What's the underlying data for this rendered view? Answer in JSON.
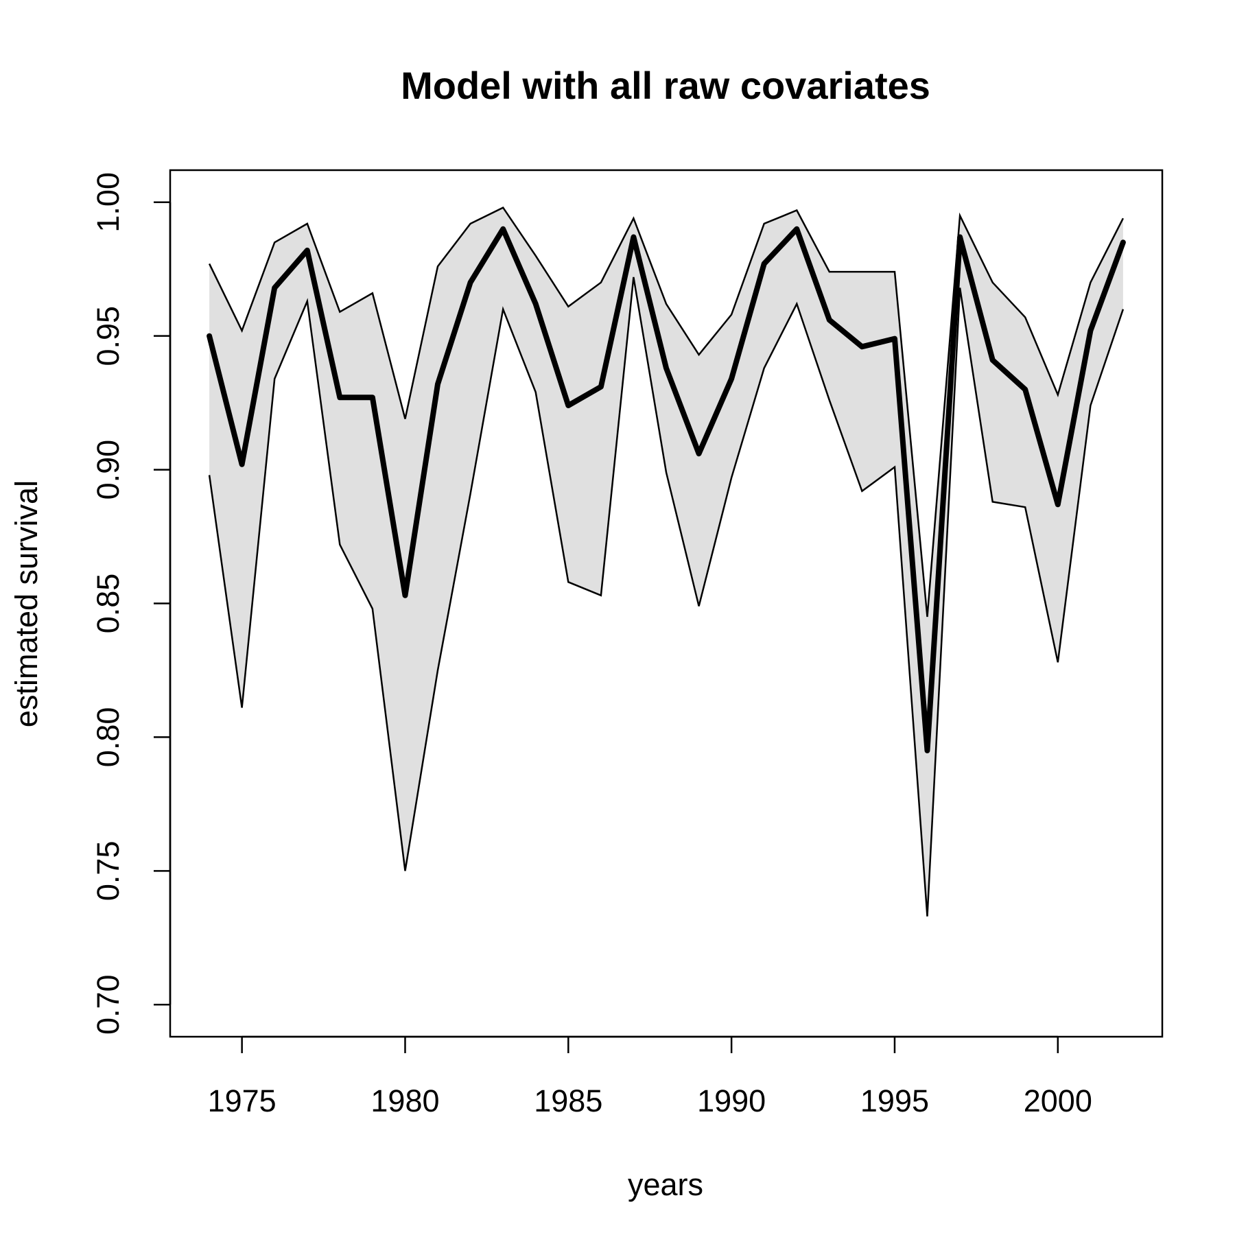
{
  "chart_data": {
    "type": "line",
    "title": "Model with all raw covariates",
    "xlabel": "years",
    "ylabel": "estimated survival",
    "xlim": [
      1972.8,
      2003.2
    ],
    "ylim": [
      0.688,
      1.012
    ],
    "x_ticks": [
      1975,
      1980,
      1985,
      1990,
      1995,
      2000
    ],
    "y_ticks": [
      0.7,
      0.75,
      0.8,
      0.85,
      0.9,
      0.95,
      1.0
    ],
    "x_tick_labels": [
      "1975",
      "1980",
      "1985",
      "1990",
      "1995",
      "2000"
    ],
    "y_tick_labels": [
      "0.70",
      "0.75",
      "0.80",
      "0.85",
      "0.90",
      "0.95",
      "1.00"
    ],
    "grid": false,
    "colors": {
      "band_fill": "#e0e0e0",
      "line": "#000000"
    },
    "x": [
      1974,
      1975,
      1976,
      1977,
      1978,
      1979,
      1980,
      1981,
      1982,
      1983,
      1984,
      1985,
      1986,
      1987,
      1988,
      1989,
      1990,
      1991,
      1992,
      1993,
      1994,
      1995,
      1996,
      1997,
      1998,
      1999,
      2000,
      2001,
      2002
    ],
    "series": [
      {
        "role": "estimate",
        "values": [
          0.95,
          0.902,
          0.968,
          0.982,
          0.927,
          0.927,
          0.853,
          0.932,
          0.97,
          0.99,
          0.962,
          0.924,
          0.931,
          0.987,
          0.938,
          0.906,
          0.934,
          0.977,
          0.99,
          0.956,
          0.946,
          0.949,
          0.795,
          0.987,
          0.941,
          0.93,
          0.887,
          0.952,
          0.985
        ]
      },
      {
        "role": "upper",
        "values": [
          0.977,
          0.952,
          0.985,
          0.992,
          0.959,
          0.966,
          0.919,
          0.976,
          0.992,
          0.998,
          0.98,
          0.961,
          0.97,
          0.994,
          0.962,
          0.943,
          0.958,
          0.992,
          0.997,
          0.974,
          0.974,
          0.974,
          0.845,
          0.995,
          0.97,
          0.957,
          0.928,
          0.97,
          0.994
        ]
      },
      {
        "role": "lower",
        "values": [
          0.898,
          0.811,
          0.934,
          0.963,
          0.872,
          0.848,
          0.75,
          0.825,
          0.891,
          0.96,
          0.929,
          0.858,
          0.853,
          0.972,
          0.899,
          0.849,
          0.897,
          0.938,
          0.962,
          0.926,
          0.892,
          0.901,
          0.733,
          0.968,
          0.888,
          0.886,
          0.828,
          0.924,
          0.96
        ]
      }
    ]
  }
}
